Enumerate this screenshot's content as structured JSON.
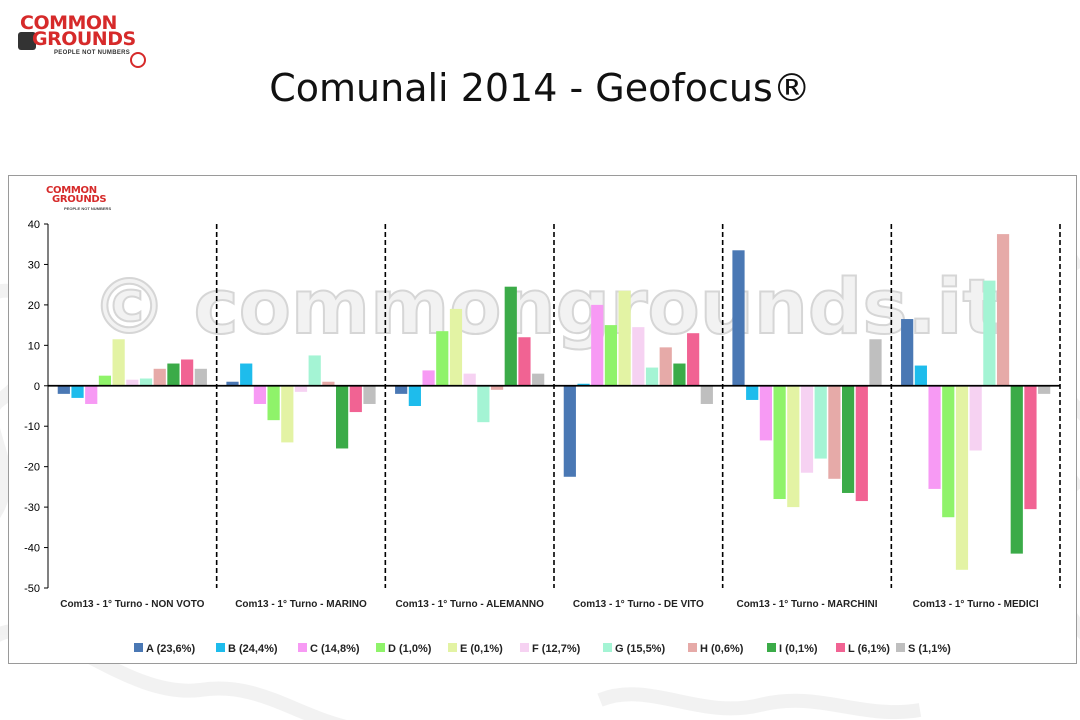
{
  "slide": {
    "title": "Comunali 2014 - Geofocus®",
    "logo": {
      "line1": "COMMON",
      "line2": "GROUNDS",
      "tagline": "PEOPLE NOT NUMBERS"
    },
    "watermark": "© commongrounds.it"
  },
  "colors": {
    "A": "#4a78b4",
    "B": "#1ebcec",
    "C": "#f79af4",
    "D": "#8ff36a",
    "E": "#e3f3a4",
    "F": "#f6d2f2",
    "G": "#a4f4d4",
    "H": "#e6aaa8",
    "I": "#3bab48",
    "L": "#f16393",
    "S": "#bfbfbf"
  },
  "chart_data": {
    "type": "bar",
    "title": "",
    "xlabel": "",
    "ylabel": "",
    "ylim": [
      -50,
      40
    ],
    "yticks": [
      40,
      30,
      20,
      10,
      0,
      -10,
      -20,
      -30,
      -40,
      -50
    ],
    "grid": false,
    "legend_position": "bottom",
    "categories": [
      "Com13 - 1° Turno - NON VOTO",
      "Com13 - 1° Turno - MARINO",
      "Com13 - 1° Turno - ALEMANNO",
      "Com13 - 1° Turno - DE VITO",
      "Com13 - 1° Turno - MARCHINI",
      "Com13 - 1° Turno - MEDICI"
    ],
    "series": [
      {
        "key": "A",
        "name": "A (23,6%)",
        "values": [
          -2,
          1,
          -2,
          -22.5,
          33.5,
          16.5
        ]
      },
      {
        "key": "B",
        "name": "B (24,4%)",
        "values": [
          -3,
          5.5,
          -5,
          0.5,
          -3.5,
          5
        ]
      },
      {
        "key": "C",
        "name": "C (14,8%)",
        "values": [
          -4.5,
          -4.5,
          3.8,
          20,
          -13.5,
          -25.5
        ]
      },
      {
        "key": "D",
        "name": "D (1,0%)",
        "values": [
          2.5,
          -8.5,
          13.5,
          15,
          -28,
          -32.5
        ]
      },
      {
        "key": "E",
        "name": "E (0,1%)",
        "values": [
          11.5,
          -14,
          19,
          23.5,
          -30,
          -45.5
        ]
      },
      {
        "key": "F",
        "name": "F (12,7%)",
        "values": [
          1.5,
          -1.5,
          3,
          14.5,
          -21.5,
          -16
        ]
      },
      {
        "key": "G",
        "name": "G (15,5%)",
        "values": [
          1.8,
          7.5,
          -9,
          4.5,
          -18,
          26
        ]
      },
      {
        "key": "H",
        "name": "H (0,6%)",
        "values": [
          4.2,
          1,
          -1,
          9.5,
          -23,
          37.5
        ]
      },
      {
        "key": "I",
        "name": "I (0,1%)",
        "values": [
          5.5,
          -15.5,
          24.5,
          5.5,
          -26.5,
          -41.5
        ]
      },
      {
        "key": "L",
        "name": "L (6,1%)",
        "values": [
          6.5,
          -6.5,
          12,
          13,
          -28.5,
          -30.5
        ]
      },
      {
        "key": "S",
        "name": "S (1,1%)",
        "values": [
          4.2,
          -4.5,
          3,
          -4.5,
          11.5,
          -2
        ]
      }
    ]
  }
}
